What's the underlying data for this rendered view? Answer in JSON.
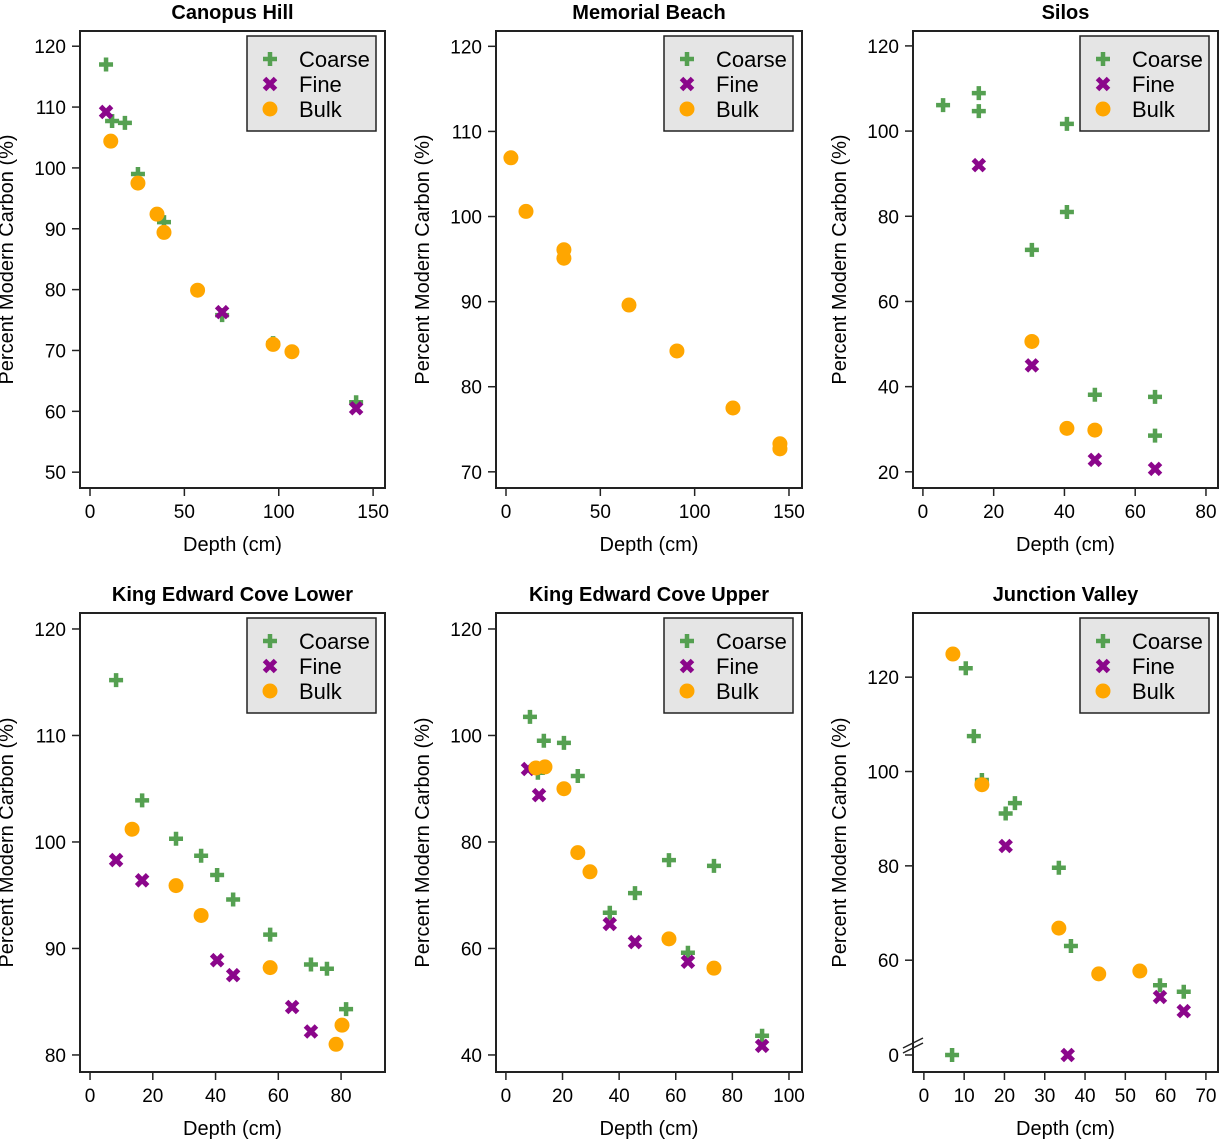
{
  "colors": {
    "Coarse": "#55a051",
    "Fine": "#8b068b",
    "Bulk": "#ffa600",
    "legend_bg": "#e5e5e5"
  },
  "chart_data": [
    {
      "type": "scatter",
      "title": "Canopus Hill",
      "xlabel": "Depth (cm)",
      "ylabel": "Percent Modern Carbon (%)",
      "xlim": [
        -5.3,
        156.3
      ],
      "ylim": [
        47.4,
        122.5
      ],
      "xticks": [
        0,
        50,
        100,
        150
      ],
      "yticks": [
        50,
        60,
        70,
        80,
        90,
        100,
        110,
        120
      ],
      "legend": "top-right",
      "grid": false,
      "series": [
        {
          "name": "Coarse",
          "marker": "plus",
          "points": [
            [
              8.5,
              117.0
            ],
            [
              11.7,
              107.7
            ],
            [
              18.5,
              107.4
            ],
            [
              25.4,
              99.0
            ],
            [
              39.2,
              91.1
            ],
            [
              70,
              75.8
            ],
            [
              97,
              71.2
            ],
            [
              107,
              69.8
            ],
            [
              141,
              61.5
            ]
          ]
        },
        {
          "name": "Fine",
          "marker": "cross",
          "points": [
            [
              8.5,
              109.2
            ],
            [
              70,
              76.3
            ],
            [
              141,
              60.5
            ]
          ]
        },
        {
          "name": "Bulk",
          "marker": "circle",
          "points": [
            [
              11,
              104.4
            ],
            [
              25.4,
              97.5
            ],
            [
              35.5,
              92.4
            ],
            [
              39.2,
              89.4
            ],
            [
              57,
              79.9
            ],
            [
              97,
              71.0
            ],
            [
              107,
              69.8
            ]
          ]
        }
      ]
    },
    {
      "type": "scatter",
      "title": "Memorial Beach",
      "xlabel": "Depth (cm)",
      "ylabel": "Percent Modern Carbon (%)",
      "xlim": [
        -5.3,
        156.9
      ],
      "ylim": [
        68.1,
        121.8
      ],
      "xticks": [
        0,
        50,
        100,
        150
      ],
      "yticks": [
        70,
        80,
        90,
        100,
        110,
        120
      ],
      "legend": "top-right",
      "grid": false,
      "series": [
        {
          "name": "Coarse",
          "marker": "plus",
          "points": []
        },
        {
          "name": "Fine",
          "marker": "cross",
          "points": []
        },
        {
          "name": "Bulk",
          "marker": "circle",
          "points": [
            [
              2.6,
              106.9
            ],
            [
              10.6,
              100.6
            ],
            [
              30.7,
              96.1
            ],
            [
              30.7,
              95.1
            ],
            [
              65.2,
              89.6
            ],
            [
              90.6,
              84.2
            ],
            [
              120.3,
              77.5
            ],
            [
              145.2,
              73.3
            ],
            [
              145.2,
              72.7
            ]
          ]
        }
      ]
    },
    {
      "type": "scatter",
      "title": "Silos",
      "xlabel": "Depth (cm)",
      "ylabel": "Percent Modern Carbon (%)",
      "xlim": [
        -2.8,
        83.4
      ],
      "ylim": [
        16.2,
        123.5
      ],
      "xticks": [
        0,
        20,
        40,
        60,
        80
      ],
      "yticks": [
        20,
        40,
        60,
        80,
        100,
        120
      ],
      "legend": "top-right",
      "grid": false,
      "series": [
        {
          "name": "Coarse",
          "marker": "plus",
          "points": [
            [
              5.7,
              106.1
            ],
            [
              15.8,
              108.9
            ],
            [
              15.8,
              104.7
            ],
            [
              40.7,
              101.7
            ],
            [
              40.7,
              81.0
            ],
            [
              30.8,
              72.1
            ],
            [
              48.6,
              38.1
            ],
            [
              65.6,
              37.6
            ],
            [
              65.6,
              28.5
            ]
          ]
        },
        {
          "name": "Fine",
          "marker": "cross",
          "points": [
            [
              15.8,
              92.0
            ],
            [
              30.8,
              45.0
            ],
            [
              48.6,
              22.8
            ],
            [
              65.6,
              20.7
            ]
          ]
        },
        {
          "name": "Bulk",
          "marker": "circle",
          "points": [
            [
              30.8,
              50.6
            ],
            [
              40.7,
              30.2
            ],
            [
              48.6,
              29.8
            ]
          ]
        }
      ]
    },
    {
      "type": "scatter",
      "title": "King Edward Cove Lower",
      "xlabel": "Depth (cm)",
      "ylabel": "Percent Modern Carbon (%)",
      "xlim": [
        -3.2,
        94.0
      ],
      "ylim": [
        78.4,
        121.5
      ],
      "xticks": [
        0,
        20,
        40,
        60,
        80
      ],
      "yticks": [
        80,
        90,
        100,
        110,
        120
      ],
      "legend": "top-right",
      "grid": false,
      "series": [
        {
          "name": "Coarse",
          "marker": "plus",
          "points": [
            [
              8.3,
              115.2
            ],
            [
              16.6,
              103.9
            ],
            [
              27.4,
              100.3
            ],
            [
              35.4,
              98.7
            ],
            [
              40.5,
              96.9
            ],
            [
              45.6,
              94.6
            ],
            [
              57.4,
              91.3
            ],
            [
              70.4,
              88.5
            ],
            [
              75.5,
              88.1
            ],
            [
              81.6,
              84.3
            ]
          ]
        },
        {
          "name": "Fine",
          "marker": "cross",
          "points": [
            [
              8.3,
              98.3
            ],
            [
              16.6,
              96.4
            ],
            [
              40.5,
              88.9
            ],
            [
              45.6,
              87.5
            ],
            [
              64.4,
              84.5
            ],
            [
              70.4,
              82.2
            ]
          ]
        },
        {
          "name": "Bulk",
          "marker": "circle",
          "points": [
            [
              13.4,
              101.2
            ],
            [
              27.4,
              95.9
            ],
            [
              35.4,
              93.1
            ],
            [
              57.4,
              88.2
            ],
            [
              80.3,
              82.8
            ],
            [
              78.4,
              81.0
            ]
          ]
        }
      ]
    },
    {
      "type": "scatter",
      "title": "King Edward Cove Upper",
      "xlabel": "Depth (cm)",
      "ylabel": "Percent Modern Carbon (%)",
      "xlim": [
        -3.5,
        104.6
      ],
      "ylim": [
        36.8,
        123.0
      ],
      "xticks": [
        0,
        20,
        40,
        60,
        80,
        100
      ],
      "yticks": [
        40,
        60,
        80,
        100,
        120
      ],
      "legend": "top-right",
      "grid": false,
      "series": [
        {
          "name": "Coarse",
          "marker": "plus",
          "points": [
            [
              8.5,
              103.5
            ],
            [
              11.3,
              93.0
            ],
            [
              13.4,
              99.0
            ],
            [
              20.5,
              98.6
            ],
            [
              25.4,
              92.4
            ],
            [
              36.7,
              66.7
            ],
            [
              45.6,
              70.4
            ],
            [
              57.6,
              76.6
            ],
            [
              73.5,
              75.5
            ],
            [
              64.3,
              59.2
            ],
            [
              90.5,
              43.6
            ]
          ]
        },
        {
          "name": "Fine",
          "marker": "cross",
          "points": [
            [
              7.8,
              93.7
            ],
            [
              11.7,
              88.8
            ],
            [
              36.7,
              64.6
            ],
            [
              45.6,
              61.2
            ],
            [
              64.3,
              57.5
            ],
            [
              90.5,
              41.7
            ]
          ]
        },
        {
          "name": "Bulk",
          "marker": "circle",
          "points": [
            [
              10.6,
              93.9
            ],
            [
              13.8,
              94.1
            ],
            [
              20.5,
              90.0
            ],
            [
              25.4,
              78.0
            ],
            [
              29.7,
              74.4
            ],
            [
              57.6,
              61.8
            ],
            [
              73.5,
              56.3
            ]
          ]
        }
      ]
    },
    {
      "type": "scatter",
      "title": "Junction Valley",
      "xlabel": "Depth (cm)",
      "ylabel": "Percent Modern Carbon (%)",
      "xlim": [
        -2.7,
        73.0
      ],
      "ylim": [
        36.3,
        133.6
      ],
      "y_axis_break": true,
      "xticks": [
        0,
        10,
        20,
        30,
        40,
        50,
        60,
        70
      ],
      "yticks": [
        0,
        60,
        80,
        100,
        120
      ],
      "legend": "top-right",
      "grid": false,
      "series": [
        {
          "name": "Coarse",
          "marker": "plus",
          "points": [
            [
              10.4,
              121.9
            ],
            [
              12.4,
              107.5
            ],
            [
              14.4,
              98.2
            ],
            [
              20.3,
              91.1
            ],
            [
              22.6,
              93.3
            ],
            [
              33.5,
              79.6
            ],
            [
              36.5,
              63.0
            ],
            [
              58.6,
              54.7
            ],
            [
              64.5,
              53.3
            ],
            [
              7.0,
              0
            ]
          ]
        },
        {
          "name": "Fine",
          "marker": "cross",
          "points": [
            [
              20.3,
              84.2
            ],
            [
              58.6,
              52.2
            ],
            [
              64.5,
              49.2
            ],
            [
              35.7,
              0
            ]
          ]
        },
        {
          "name": "Bulk",
          "marker": "circle",
          "points": [
            [
              7.2,
              124.9
            ],
            [
              14.4,
              97.2
            ],
            [
              33.5,
              66.8
            ],
            [
              43.4,
              57.1
            ],
            [
              53.6,
              57.7
            ]
          ]
        }
      ]
    }
  ]
}
